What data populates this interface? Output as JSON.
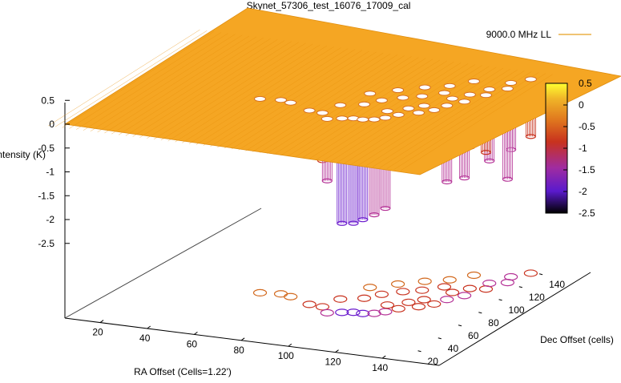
{
  "chart_data": {
    "type": "3d-surface",
    "title": "Skynet_57306_test_16076_17009_cal",
    "xlabel": "RA Offset (Cells=1.22')",
    "ylabel": "Dec Offset (cells)",
    "zlabel": "Intensity (K)",
    "x_ticks": [
      "20",
      "40",
      "60",
      "80",
      "100",
      "120",
      "140"
    ],
    "y_ticks": [
      "20",
      "40",
      "60",
      "80",
      "100",
      "120",
      "140"
    ],
    "z_ticks": [
      "0.5",
      "0",
      "-0.5",
      "-1",
      "-1.5",
      "-2",
      "-2.5"
    ],
    "zlim": [
      -2.5,
      0.5
    ],
    "colorbar_ticks": [
      "0.5",
      "0",
      "-0.5",
      "-1",
      "-1.5",
      "-2",
      "-2.5"
    ],
    "colorbar_range": [
      -2.5,
      0.5
    ],
    "legend": {
      "label": "9000.0 MHz LL",
      "color": "#e6a020",
      "placement": "top-right"
    },
    "surface_level": 0,
    "contours_on_base": true,
    "colors": {
      "surface": "#f5a623",
      "surface_line": "#e8900c",
      "dip_shallow": "#d2691e",
      "dip_mid": "#c8321e",
      "dip_deep": "#b43296",
      "dip_deepest": "#6a1acd"
    },
    "dips": [
      {
        "x": 60,
        "y": 70,
        "depth": -0.55
      },
      {
        "x": 68,
        "y": 72,
        "depth": -0.5
      },
      {
        "x": 73,
        "y": 70,
        "depth": -0.55
      },
      {
        "x": 84,
        "y": 63,
        "depth": -0.9
      },
      {
        "x": 90,
        "y": 62,
        "depth": -1.0
      },
      {
        "x": 92,
        "y": 75,
        "depth": -0.6
      },
      {
        "x": 95,
        "y": 55,
        "depth": -1.3
      },
      {
        "x": 100,
        "y": 58,
        "depth": -2.2
      },
      {
        "x": 104,
        "y": 60,
        "depth": -2.2
      },
      {
        "x": 108,
        "y": 60,
        "depth": -2.1
      },
      {
        "x": 112,
        "y": 62,
        "depth": -2.0
      },
      {
        "x": 115,
        "y": 66,
        "depth": -1.9
      },
      {
        "x": 112,
        "y": 75,
        "depth": -0.9
      },
      {
        "x": 118,
        "y": 72,
        "depth": -1.0
      },
      {
        "x": 118,
        "y": 82,
        "depth": -0.9
      },
      {
        "x": 124,
        "y": 78,
        "depth": -1.0
      },
      {
        "x": 122,
        "y": 88,
        "depth": -0.95
      },
      {
        "x": 128,
        "y": 84,
        "depth": -1.0
      },
      {
        "x": 130,
        "y": 92,
        "depth": -1.6
      },
      {
        "x": 134,
        "y": 100,
        "depth": -1.6
      },
      {
        "x": 128,
        "y": 102,
        "depth": -1.0
      },
      {
        "x": 132,
        "y": 110,
        "depth": -1.1
      },
      {
        "x": 138,
        "y": 112,
        "depth": -1.2
      },
      {
        "x": 136,
        "y": 120,
        "depth": -1.5
      },
      {
        "x": 142,
        "y": 124,
        "depth": -1.9
      },
      {
        "x": 140,
        "y": 132,
        "depth": -1.4
      },
      {
        "x": 145,
        "y": 140,
        "depth": -1.2
      },
      {
        "x": 100,
        "y": 80,
        "depth": -0.7
      },
      {
        "x": 104,
        "y": 88,
        "depth": -0.8
      },
      {
        "x": 110,
        "y": 95,
        "depth": -0.7
      },
      {
        "x": 116,
        "y": 100,
        "depth": -0.7
      },
      {
        "x": 122,
        "y": 108,
        "depth": -0.6
      },
      {
        "x": 96,
        "y": 95,
        "depth": -0.4
      },
      {
        "x": 104,
        "y": 104,
        "depth": -0.4
      },
      {
        "x": 112,
        "y": 112,
        "depth": -0.4
      },
      {
        "x": 120,
        "y": 118,
        "depth": -0.4
      },
      {
        "x": 126,
        "y": 128,
        "depth": -0.4
      }
    ]
  }
}
